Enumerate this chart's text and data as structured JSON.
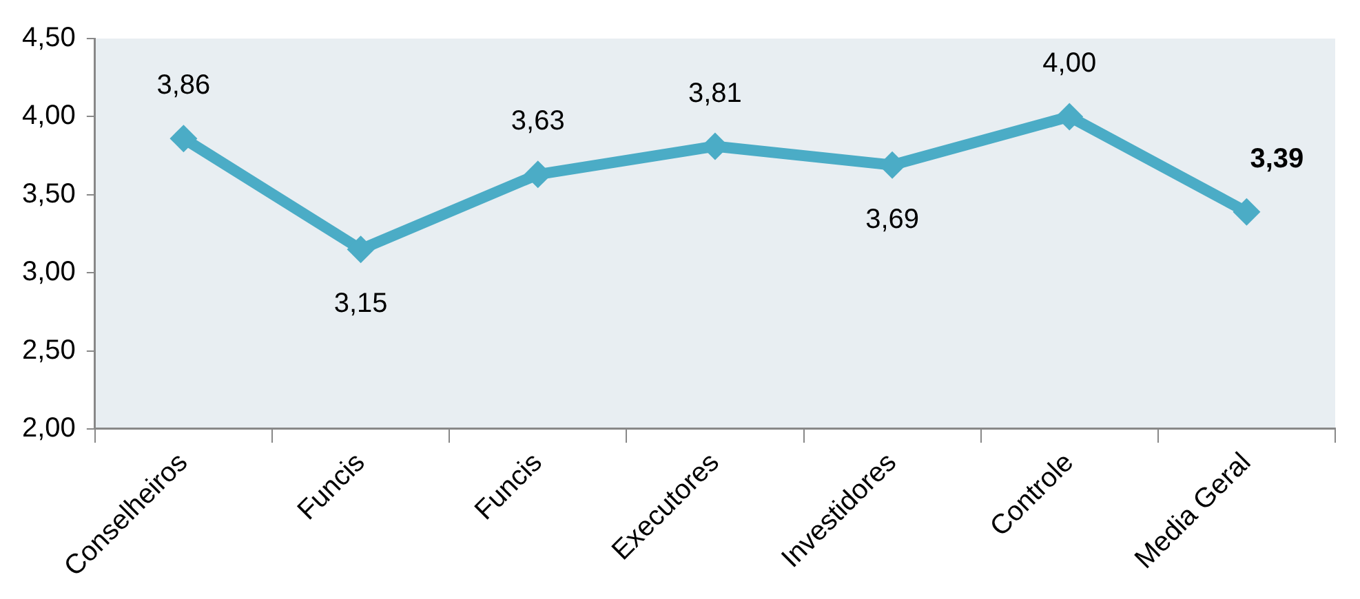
{
  "chart_data": {
    "type": "line",
    "categories": [
      "Conselheiros",
      "Funcis",
      "Funcis",
      "Executores",
      "Investidores",
      "Controle",
      "Media Geral"
    ],
    "series": [
      {
        "color": "#4bacc6",
        "values": [
          3.86,
          3.15,
          3.63,
          3.81,
          3.69,
          4.0,
          3.39
        ],
        "value_labels": [
          "3,86",
          "3,15",
          "3,63",
          "3,81",
          "3,69",
          "4,00",
          "3,39"
        ]
      }
    ],
    "ylim": [
      2,
      4.5
    ],
    "yticks": [
      {
        "value": 2,
        "label": "2,00"
      },
      {
        "value": 2.5,
        "label": "2,50"
      },
      {
        "value": 3,
        "label": "3,00"
      },
      {
        "value": 3.5,
        "label": "3,50"
      },
      {
        "value": 4,
        "label": "4,00"
      },
      {
        "value": 4.5,
        "label": "4,50"
      }
    ],
    "grid": false,
    "legend": false,
    "marker": "diamond",
    "line_style": "solid"
  }
}
